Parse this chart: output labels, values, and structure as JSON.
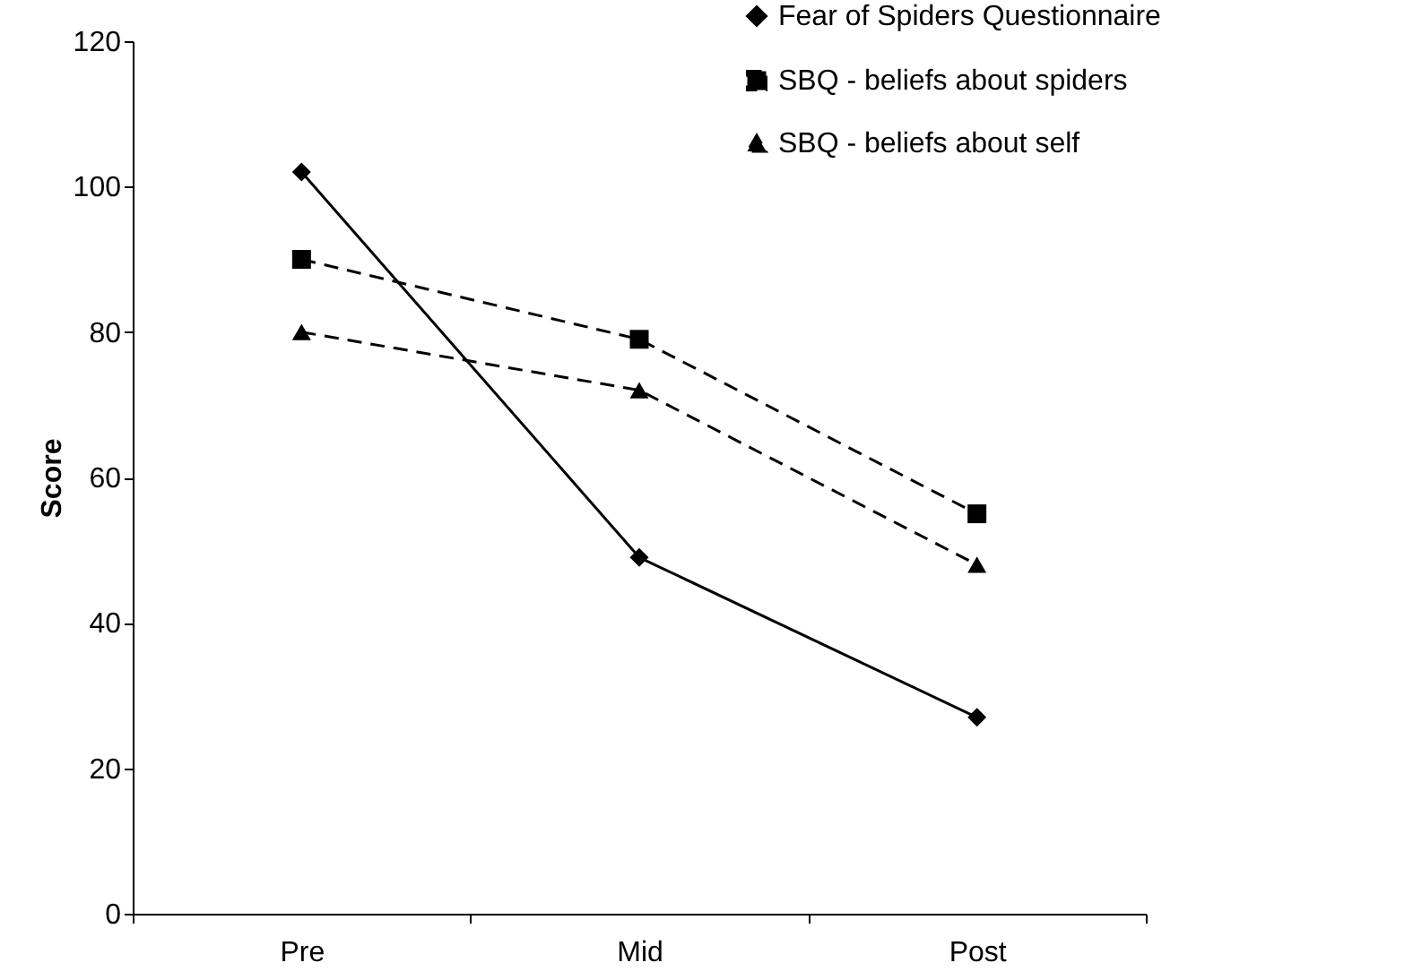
{
  "chart_data": {
    "type": "line",
    "ylabel": "Score",
    "categories": [
      "Pre",
      "Mid",
      "Post"
    ],
    "series": [
      {
        "name": "Fear of Spiders Questionnaire",
        "color": "#000000",
        "marker": "diamond",
        "line_style": "solid",
        "values": [
          102,
          49,
          27
        ]
      },
      {
        "name": "SBQ - beliefs about spiders",
        "color": "#000000",
        "marker": "square",
        "line_style": "dashed",
        "values": [
          90,
          79,
          55
        ]
      },
      {
        "name": "SBQ - beliefs about self",
        "color": "#000000",
        "marker": "triangle",
        "line_style": "dashed",
        "values": [
          80,
          72,
          48
        ]
      }
    ],
    "ylim": [
      0,
      120
    ],
    "yticks": [
      0,
      20,
      40,
      60,
      80,
      100,
      120
    ],
    "grid": false,
    "legend": "top right"
  }
}
